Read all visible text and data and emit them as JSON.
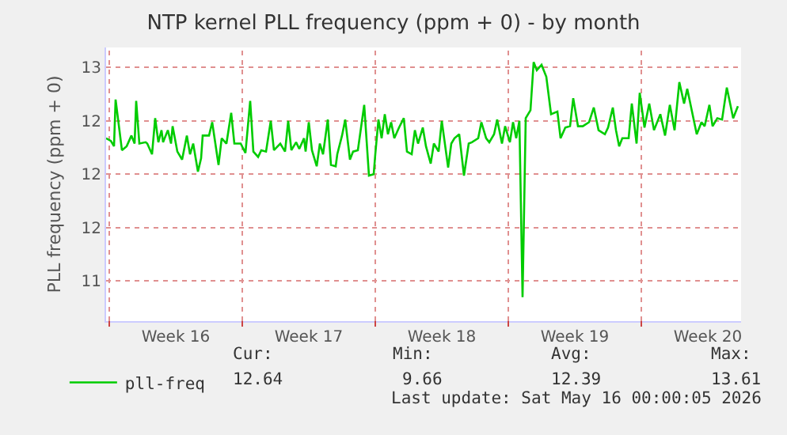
{
  "chart_data": {
    "type": "line",
    "title": "NTP kernel PLL frequency (ppm + 0) - by month",
    "ylabel": "PLL frequency (ppm + 0)",
    "x": [
      "2026-04-12T20:00",
      "2026-04-13T02:00",
      "2026-04-13T06:00",
      "2026-04-13T08:00",
      "2026-04-13T16:00",
      "2026-04-13T22:00",
      "2026-04-14T04:00",
      "2026-04-14T08:00",
      "2026-04-14T10:00",
      "2026-04-14T14:00",
      "2026-04-14T22:00",
      "2026-04-15T00:00",
      "2026-04-15T06:00",
      "2026-04-15T10:00",
      "2026-04-15T14:00",
      "2026-04-15T18:00",
      "2026-04-15T20:00",
      "2026-04-16T02:00",
      "2026-04-16T06:00",
      "2026-04-16T08:00",
      "2026-04-16T14:00",
      "2026-04-16T20:00",
      "2026-04-17T02:00",
      "2026-04-17T06:00",
      "2026-04-17T10:00",
      "2026-04-17T16:00",
      "2026-04-17T20:00",
      "2026-04-17T22:00",
      "2026-04-18T06:00",
      "2026-04-18T10:00",
      "2026-04-18T16:00",
      "2026-04-18T18:00",
      "2026-04-18T22:00",
      "2026-04-19T04:00",
      "2026-04-19T10:00",
      "2026-04-19T14:00",
      "2026-04-19T22:00",
      "2026-04-20T04:00",
      "2026-04-20T10:00",
      "2026-04-20T14:00",
      "2026-04-20T20:00",
      "2026-04-21T00:00",
      "2026-04-21T06:00",
      "2026-04-21T12:00",
      "2026-04-21T16:00",
      "2026-04-22T00:00",
      "2026-04-22T06:00",
      "2026-04-22T10:00",
      "2026-04-22T14:00",
      "2026-04-22T20:00",
      "2026-04-23T00:00",
      "2026-04-23T06:00",
      "2026-04-23T08:00",
      "2026-04-23T12:00",
      "2026-04-23T16:00",
      "2026-04-23T22:00",
      "2026-04-24T02:00",
      "2026-04-24T06:00",
      "2026-04-24T12:00",
      "2026-04-24T16:00",
      "2026-04-24T22:00",
      "2026-04-25T00:00",
      "2026-04-25T06:00",
      "2026-04-25T10:00",
      "2026-04-25T16:00",
      "2026-04-25T20:00",
      "2026-04-26T02:00",
      "2026-04-26T06:00",
      "2026-04-26T10:00",
      "2026-04-26T16:00",
      "2026-04-26T22:00",
      "2026-04-27T00:00",
      "2026-04-27T04:00",
      "2026-04-27T08:00",
      "2026-04-27T12:00",
      "2026-04-27T16:00",
      "2026-04-27T20:00",
      "2026-04-28T00:00",
      "2026-04-28T06:00",
      "2026-04-28T12:00",
      "2026-04-28T16:00",
      "2026-04-28T22:00",
      "2026-04-29T02:00",
      "2026-04-29T06:00",
      "2026-04-29T12:00",
      "2026-04-29T16:00",
      "2026-04-29T22:00",
      "2026-04-30T02:00",
      "2026-04-30T08:00",
      "2026-04-30T12:00",
      "2026-04-30T20:00",
      "2026-05-01T00:00",
      "2026-05-01T04:00",
      "2026-05-01T10:00",
      "2026-05-01T16:00",
      "2026-05-01T22:00",
      "2026-05-02T02:00",
      "2026-05-02T10:00",
      "2026-05-02T14:00",
      "2026-05-02T20:00",
      "2026-05-03T00:00",
      "2026-05-03T06:00",
      "2026-05-03T10:00",
      "2026-05-03T16:00",
      "2026-05-03T20:00",
      "2026-05-04T02:00",
      "2026-05-04T06:00",
      "2026-05-04T10:00",
      "2026-05-04T14:00",
      "2026-05-04T18:00",
      "2026-05-04T22:00",
      "2026-05-05T04:00",
      "2026-05-05T08:00",
      "2026-05-05T12:00",
      "2026-05-05T18:00",
      "2026-05-06T00:00",
      "2026-05-06T06:00",
      "2026-05-06T14:00",
      "2026-05-06T18:00",
      "2026-05-07T00:00",
      "2026-05-07T06:00",
      "2026-05-07T10:00",
      "2026-05-07T16:00",
      "2026-05-07T22:00",
      "2026-05-08T06:00",
      "2026-05-08T12:00",
      "2026-05-08T18:00",
      "2026-05-09T02:00",
      "2026-05-09T06:00",
      "2026-05-09T12:00",
      "2026-05-09T16:00",
      "2026-05-09T20:00",
      "2026-05-10T00:00",
      "2026-05-10T08:00",
      "2026-05-10T12:00",
      "2026-05-10T18:00",
      "2026-05-10T22:00",
      "2026-05-11T04:00",
      "2026-05-11T10:00",
      "2026-05-11T16:00",
      "2026-05-12T00:00",
      "2026-05-12T06:00",
      "2026-05-12T12:00",
      "2026-05-12T18:00",
      "2026-05-13T00:00",
      "2026-05-13T06:00",
      "2026-05-13T10:00",
      "2026-05-13T16:00",
      "2026-05-13T22:00",
      "2026-05-14T04:00",
      "2026-05-14T08:00",
      "2026-05-14T14:00",
      "2026-05-14T18:00",
      "2026-05-15T00:00",
      "2026-05-15T06:00",
      "2026-05-15T12:00",
      "2026-05-15T20:00",
      "2026-05-16T02:00"
    ],
    "series": [
      {
        "name": "pll-freq",
        "color": "#00cc00",
        "values": [
          12.27,
          12.25,
          12.21,
          12.56,
          12.18,
          12.21,
          12.29,
          12.23,
          12.55,
          12.23,
          12.24,
          12.23,
          12.15,
          12.42,
          12.24,
          12.33,
          12.24,
          12.33,
          12.23,
          12.36,
          12.17,
          12.11,
          12.29,
          12.15,
          12.23,
          12.02,
          12.12,
          12.29,
          12.29,
          12.39,
          12.15,
          12.07,
          12.27,
          12.23,
          12.46,
          12.23,
          12.23,
          12.16,
          12.55,
          12.17,
          12.13,
          12.18,
          12.17,
          12.4,
          12.18,
          12.23,
          12.17,
          12.4,
          12.18,
          12.24,
          12.19,
          12.27,
          12.17,
          12.39,
          12.18,
          12.06,
          12.23,
          12.15,
          12.41,
          12.07,
          12.06,
          12.15,
          12.29,
          12.41,
          12.11,
          12.17,
          12.18,
          12.35,
          12.52,
          11.99,
          12.0,
          12.15,
          12.41,
          12.27,
          12.45,
          12.3,
          12.39,
          12.27,
          12.35,
          12.42,
          12.17,
          12.15,
          12.33,
          12.23,
          12.35,
          12.21,
          12.08,
          12.23,
          12.17,
          12.4,
          12.05,
          12.23,
          12.27,
          12.3,
          11.99,
          12.23,
          12.24,
          12.27,
          12.39,
          12.27,
          12.24,
          12.3,
          12.41,
          12.23,
          12.36,
          12.24,
          12.39,
          12.27,
          12.4,
          11.08,
          12.42,
          12.48,
          12.84,
          12.78,
          12.82,
          12.73,
          12.45,
          12.47,
          12.27,
          12.35,
          12.36,
          12.57,
          12.36,
          12.36,
          12.39,
          12.5,
          12.33,
          12.3,
          12.35,
          12.5,
          12.33,
          12.21,
          12.27,
          12.27,
          12.53,
          12.23,
          12.61,
          12.35,
          12.53,
          12.33,
          12.45,
          12.29,
          12.52,
          12.33,
          12.69,
          12.53,
          12.64,
          12.47,
          12.3,
          12.39,
          12.36,
          12.52,
          12.36,
          12.42,
          12.41,
          12.65,
          12.42,
          12.51
        ]
      }
    ],
    "xlim": [
      "2026-04-12T20:00",
      "2026-05-16T06:00"
    ],
    "xticks": [
      {
        "value": "2026-04-13",
        "label": null
      },
      {
        "value": "2026-04-16T12:00",
        "label": "Week 16"
      },
      {
        "value": "2026-04-20",
        "label": null
      },
      {
        "value": "2026-04-23T12:00",
        "label": "Week 17"
      },
      {
        "value": "2026-04-27",
        "label": null
      },
      {
        "value": "2026-04-30T12:00",
        "label": "Week 18"
      },
      {
        "value": "2026-05-04",
        "label": null
      },
      {
        "value": "2026-05-07T12:00",
        "label": "Week 19"
      },
      {
        "value": "2026-05-11",
        "label": null
      },
      {
        "value": "2026-05-14T12:00",
        "label": "Week 20"
      }
    ],
    "ylim": [
      10.9,
      12.95
    ],
    "yticks": [
      {
        "value": 11.2,
        "label": "11"
      },
      {
        "value": 11.6,
        "label": "12"
      },
      {
        "value": 12.0,
        "label": "12"
      },
      {
        "value": 12.4,
        "label": "12"
      },
      {
        "value": 12.8,
        "label": "13"
      }
    ],
    "grid": true,
    "legend": "bottom left",
    "annotations": [
      "Cur:",
      "12.64",
      "Min:",
      "9.66",
      "Avg:",
      "12.39",
      "Max:",
      "13.61",
      "Last update: Sat May 16 00:00:05 2026"
    ]
  }
}
